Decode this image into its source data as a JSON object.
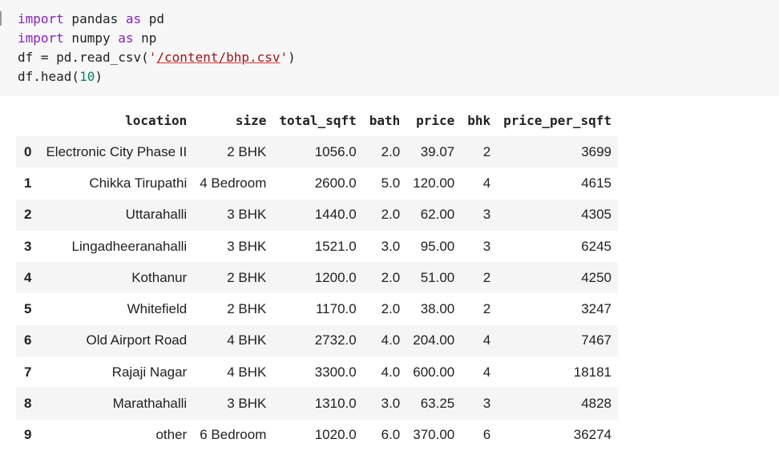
{
  "code": {
    "line1": {
      "kw1": "import",
      "t1": " pandas ",
      "kw2": "as",
      "t2": " pd"
    },
    "line2": {
      "kw1": "import",
      "t1": " numpy ",
      "kw2": "as",
      "t2": " np"
    },
    "line3": {
      "t1": "df = pd.read_csv(",
      "q1": "'",
      "path": "/content/bhp.csv",
      "q2": "'",
      "t2": ")"
    },
    "line4": {
      "t1": "df.head(",
      "num": "10",
      "t2": ")"
    }
  },
  "table": {
    "columns": [
      "",
      "location",
      "size",
      "total_sqft",
      "bath",
      "price",
      "bhk",
      "price_per_sqft"
    ],
    "rows": [
      [
        "0",
        "Electronic City Phase II",
        "2 BHK",
        "1056.0",
        "2.0",
        "39.07",
        "2",
        "3699"
      ],
      [
        "1",
        "Chikka Tirupathi",
        "4 Bedroom",
        "2600.0",
        "5.0",
        "120.00",
        "4",
        "4615"
      ],
      [
        "2",
        "Uttarahalli",
        "3 BHK",
        "1440.0",
        "2.0",
        "62.00",
        "3",
        "4305"
      ],
      [
        "3",
        "Lingadheeranahalli",
        "3 BHK",
        "1521.0",
        "3.0",
        "95.00",
        "3",
        "6245"
      ],
      [
        "4",
        "Kothanur",
        "2 BHK",
        "1200.0",
        "2.0",
        "51.00",
        "2",
        "4250"
      ],
      [
        "5",
        "Whitefield",
        "2 BHK",
        "1170.0",
        "2.0",
        "38.00",
        "2",
        "3247"
      ],
      [
        "6",
        "Old Airport Road",
        "4 BHK",
        "2732.0",
        "4.0",
        "204.00",
        "4",
        "7467"
      ],
      [
        "7",
        "Rajaji Nagar",
        "4 BHK",
        "3300.0",
        "4.0",
        "600.00",
        "4",
        "18181"
      ],
      [
        "8",
        "Marathahalli",
        "3 BHK",
        "1310.0",
        "3.0",
        "63.25",
        "3",
        "4828"
      ],
      [
        "9",
        "other",
        "6 Bedroom",
        "1020.0",
        "6.0",
        "370.00",
        "6",
        "36274"
      ]
    ]
  },
  "colors": {
    "keyword": "#8b1ec4",
    "string": "#a31515",
    "number": "#098658",
    "code_bg": "#f7f7f7",
    "row_stripe": "#f5f5f5"
  }
}
